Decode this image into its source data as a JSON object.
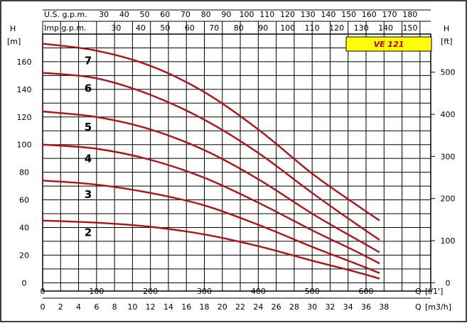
{
  "chart_data": {
    "type": "line",
    "title": "VE 121",
    "x_axes": {
      "lpm": {
        "label": "Q",
        "unit": "[l/1']",
        "range": [
          0,
          720
        ],
        "ticks": [
          0,
          100,
          200,
          300,
          400,
          500,
          600
        ]
      },
      "m3h": {
        "label": "Q",
        "unit": "[m3/h]",
        "range": [
          0,
          43.2
        ],
        "ticks": [
          0,
          2,
          4,
          6,
          8,
          10,
          12,
          14,
          16,
          18,
          20,
          22,
          24,
          26,
          28,
          30,
          32,
          34,
          36,
          38
        ]
      },
      "usgpm": {
        "label": "U.S. g.p.m.",
        "range": [
          0,
          190.2
        ],
        "ticks": [
          30,
          40,
          50,
          60,
          70,
          80,
          90,
          100,
          110,
          120,
          130,
          140,
          150,
          160,
          170,
          180
        ]
      },
      "impgpm": {
        "label": "Imp g.p.m.",
        "range": [
          0,
          158.4
        ],
        "ticks": [
          30,
          40,
          50,
          60,
          70,
          80,
          90,
          100,
          110,
          120,
          130,
          140,
          150
        ]
      }
    },
    "y_axes": {
      "m": {
        "label": "H",
        "unit": "[m]",
        "range": [
          -6,
          180
        ],
        "ticks": [
          0,
          20,
          40,
          60,
          80,
          100,
          120,
          140,
          160
        ]
      },
      "ft": {
        "label": "H",
        "unit": "[ft]",
        "range": [
          -19.7,
          590.5
        ],
        "ticks": [
          0,
          100,
          200,
          300,
          400,
          500
        ]
      }
    },
    "series": [
      {
        "name": "2",
        "x": [
          0,
          100,
          200,
          300,
          400,
          500,
          580,
          625
        ],
        "y": [
          45,
          43.5,
          40.5,
          35,
          26.5,
          16,
          8,
          3
        ]
      },
      {
        "name": "3",
        "x": [
          0,
          100,
          200,
          300,
          400,
          500,
          580,
          625
        ],
        "y": [
          74,
          71,
          65,
          56,
          42,
          26,
          14,
          7
        ]
      },
      {
        "name": "4",
        "x": [
          0,
          100,
          200,
          300,
          400,
          500,
          580,
          625
        ],
        "y": [
          100,
          97,
          89,
          76,
          58,
          38,
          23,
          14
        ]
      },
      {
        "name": "5",
        "x": [
          0,
          100,
          200,
          300,
          400,
          500,
          580,
          625
        ],
        "y": [
          124,
          120,
          111,
          96,
          75,
          50,
          32,
          22
        ]
      },
      {
        "name": "6",
        "x": [
          0,
          100,
          200,
          300,
          400,
          500,
          580,
          625
        ],
        "y": [
          152,
          148,
          136,
          118,
          94,
          65,
          43,
          31
        ]
      },
      {
        "name": "7",
        "x": [
          0,
          100,
          200,
          300,
          400,
          500,
          580,
          625
        ],
        "y": [
          173,
          168,
          157,
          138,
          111,
          79,
          57,
          45
        ]
      }
    ]
  }
}
